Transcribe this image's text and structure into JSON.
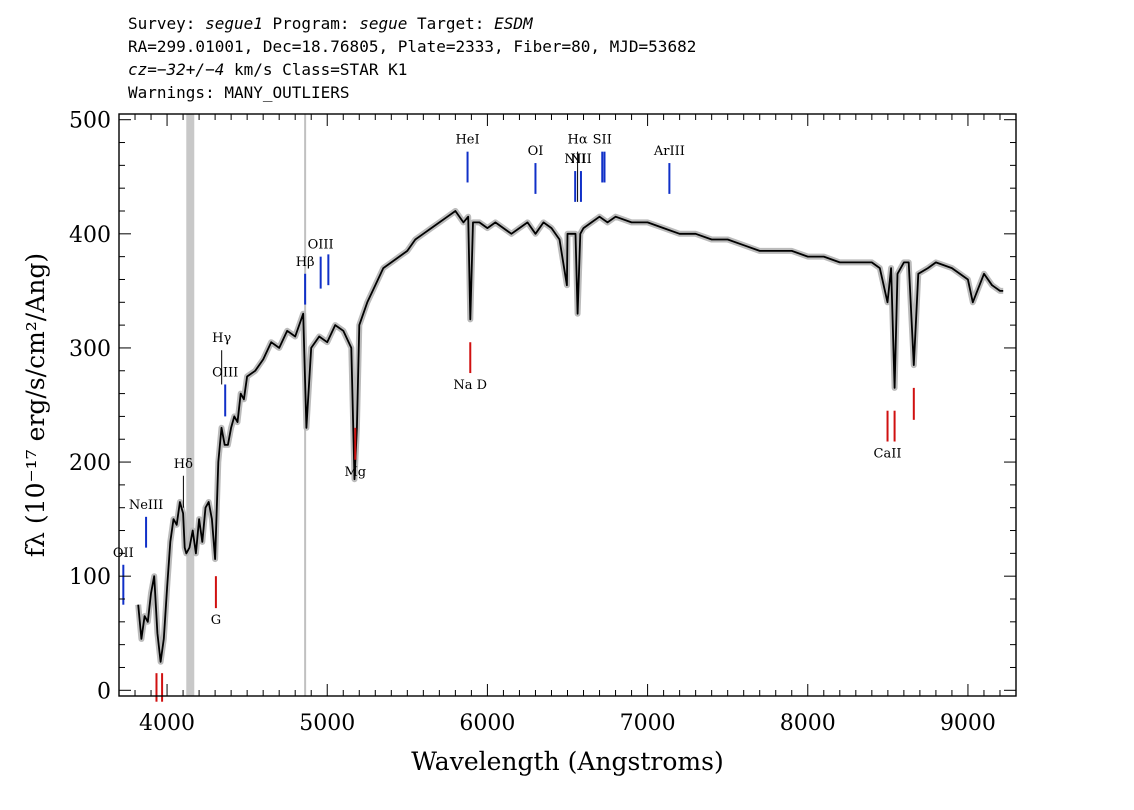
{
  "header": {
    "line1": {
      "survey_label": "Survey: ",
      "survey": "segue1",
      "program_label": " Program: ",
      "program": "segue",
      "target_label": " Target: ",
      "target": "ESDM"
    },
    "line2": "RA=299.01001, Dec=18.76805, Plate=2333, Fiber=80, MJD=53682",
    "line3": {
      "cz": "cz=−32+/−4",
      "rest": " km/s Class=STAR K1"
    },
    "line4": "Warnings: MANY_OUTLIERS"
  },
  "colors": {
    "spectrum": "#000000",
    "error_band": "#bbbbbb",
    "emission_marker": "#1030c8",
    "absorption_marker": "#d01010",
    "masked_region": "#c8c8c8"
  },
  "chart_data": {
    "type": "line",
    "xlabel": "Wavelength (Angstroms)",
    "ylabel": "fλ (10⁻¹⁷ erg/s/cm²/Ang)",
    "xlim": [
      3700,
      9300
    ],
    "ylim": [
      -5,
      505
    ],
    "x_ticks": [
      4000,
      5000,
      6000,
      7000,
      8000,
      9000
    ],
    "y_ticks": [
      0,
      100,
      200,
      300,
      400,
      500
    ],
    "x_tick_labels": [
      "4000",
      "5000",
      "6000",
      "7000",
      "8000",
      "9000"
    ],
    "y_tick_labels": [
      "0",
      "100",
      "200",
      "300",
      "400",
      "500"
    ],
    "grid": false,
    "masked_bands": [
      [
        4120,
        4170
      ]
    ],
    "vertical_reference_lines": [
      4862
    ],
    "series": [
      {
        "x": [
          3820,
          3840,
          3860,
          3880,
          3900,
          3920,
          3940,
          3960,
          3980,
          4000,
          4020,
          4040,
          4060,
          4080,
          4100,
          4110,
          4120,
          4140,
          4160,
          4180,
          4200,
          4220,
          4240,
          4260,
          4280,
          4300,
          4320,
          4340,
          4360,
          4380,
          4400,
          4420,
          4440,
          4460,
          4480,
          4500,
          4550,
          4600,
          4650,
          4700,
          4750,
          4800,
          4850,
          4870,
          4900,
          4950,
          5000,
          5050,
          5100,
          5150,
          5170,
          5185,
          5200,
          5250,
          5300,
          5350,
          5400,
          5450,
          5500,
          5550,
          5600,
          5650,
          5700,
          5750,
          5800,
          5850,
          5880,
          5893,
          5910,
          5950,
          6000,
          6050,
          6100,
          6150,
          6200,
          6250,
          6300,
          6350,
          6400,
          6450,
          6496,
          6500,
          6550,
          6563,
          6580,
          6600,
          6650,
          6700,
          6750,
          6800,
          6900,
          7000,
          7100,
          7200,
          7300,
          7400,
          7500,
          7600,
          7700,
          7800,
          7900,
          8000,
          8100,
          8200,
          8300,
          8400,
          8450,
          8498,
          8520,
          8542,
          8560,
          8600,
          8630,
          8662,
          8690,
          8750,
          8800,
          8900,
          9000,
          9030,
          9100,
          9150,
          9200,
          9220
        ],
        "y": [
          75,
          45,
          65,
          60,
          85,
          100,
          50,
          25,
          45,
          90,
          130,
          150,
          145,
          165,
          155,
          125,
          120,
          125,
          140,
          120,
          150,
          130,
          160,
          165,
          150,
          115,
          200,
          230,
          215,
          215,
          230,
          240,
          235,
          260,
          255,
          275,
          280,
          290,
          305,
          300,
          315,
          310,
          330,
          230,
          300,
          310,
          305,
          320,
          315,
          300,
          185,
          230,
          320,
          340,
          355,
          370,
          375,
          380,
          385,
          395,
          400,
          405,
          410,
          415,
          420,
          410,
          415,
          325,
          410,
          410,
          405,
          410,
          405,
          400,
          405,
          410,
          400,
          410,
          405,
          395,
          355,
          400,
          400,
          330,
          400,
          405,
          410,
          415,
          410,
          415,
          410,
          410,
          405,
          400,
          400,
          395,
          395,
          390,
          385,
          385,
          385,
          380,
          380,
          375,
          375,
          375,
          370,
          340,
          370,
          265,
          365,
          375,
          375,
          285,
          365,
          370,
          375,
          370,
          360,
          340,
          365,
          355,
          350,
          350
        ]
      }
    ],
    "line_markers": [
      {
        "label": "OII",
        "wavelength": 3727,
        "kind": "emission",
        "y_top": 110,
        "y_bottom": 75
      },
      {
        "label": "NeIII",
        "wavelength": 3869,
        "kind": "emission",
        "y_top": 152,
        "y_bottom": 125
      },
      {
        "label": "Hδ",
        "wavelength": 4102,
        "kind": "balmer",
        "y_top": 188,
        "y_bottom": 160
      },
      {
        "label": "Hγ",
        "wavelength": 4341,
        "kind": "balmer",
        "y_top": 298,
        "y_bottom": 268
      },
      {
        "label": "OIII",
        "wavelength": 4363,
        "kind": "emission",
        "y_top": 268,
        "y_bottom": 240
      },
      {
        "label": "Hβ",
        "wavelength": 4862,
        "kind": "emission",
        "y_top": 365,
        "y_bottom": 338
      },
      {
        "label": "OIII",
        "wavelength": 4959,
        "kind": "emission",
        "y_top": 380,
        "y_bottom": 352
      },
      {
        "label": "",
        "wavelength": 5007,
        "kind": "emission",
        "y_top": 382,
        "y_bottom": 355
      },
      {
        "label": "HeI",
        "wavelength": 5876,
        "kind": "emission",
        "y_top": 472,
        "y_bottom": 445
      },
      {
        "label": "OI",
        "wavelength": 6300,
        "kind": "emission",
        "y_top": 462,
        "y_bottom": 435
      },
      {
        "label": "NII",
        "wavelength": 6548,
        "kind": "emission",
        "y_top": 455,
        "y_bottom": 428
      },
      {
        "label": "Hα",
        "wavelength": 6563,
        "kind": "balmer",
        "y_top": 472,
        "y_bottom": 428
      },
      {
        "label": "NII",
        "wavelength": 6584,
        "kind": "emission",
        "y_top": 455,
        "y_bottom": 428
      },
      {
        "label": "SII",
        "wavelength": 6717,
        "kind": "emission",
        "y_top": 472,
        "y_bottom": 445
      },
      {
        "label": "",
        "wavelength": 6731,
        "kind": "emission",
        "y_top": 472,
        "y_bottom": 445
      },
      {
        "label": "ArIII",
        "wavelength": 7136,
        "kind": "emission",
        "y_top": 462,
        "y_bottom": 435
      },
      {
        "label": "",
        "wavelength": 3934,
        "kind": "absorption",
        "y_top": 15,
        "y_bottom": -10
      },
      {
        "label": "",
        "wavelength": 3969,
        "kind": "absorption",
        "y_top": 15,
        "y_bottom": -10
      },
      {
        "label": "G",
        "wavelength": 4305,
        "kind": "absorption",
        "y_top": 100,
        "y_bottom": 72
      },
      {
        "label": "Mg",
        "wavelength": 5175,
        "kind": "absorption",
        "y_top": 230,
        "y_bottom": 202
      },
      {
        "label": "Na D",
        "wavelength": 5893,
        "kind": "absorption",
        "y_top": 305,
        "y_bottom": 278
      },
      {
        "label": "CaII",
        "wavelength": 8498,
        "kind": "absorption",
        "y_top": 245,
        "y_bottom": 218
      },
      {
        "label": "",
        "wavelength": 8542,
        "kind": "absorption",
        "y_top": 245,
        "y_bottom": 218
      },
      {
        "label": "",
        "wavelength": 8662,
        "kind": "absorption",
        "y_top": 265,
        "y_bottom": 237
      }
    ]
  }
}
